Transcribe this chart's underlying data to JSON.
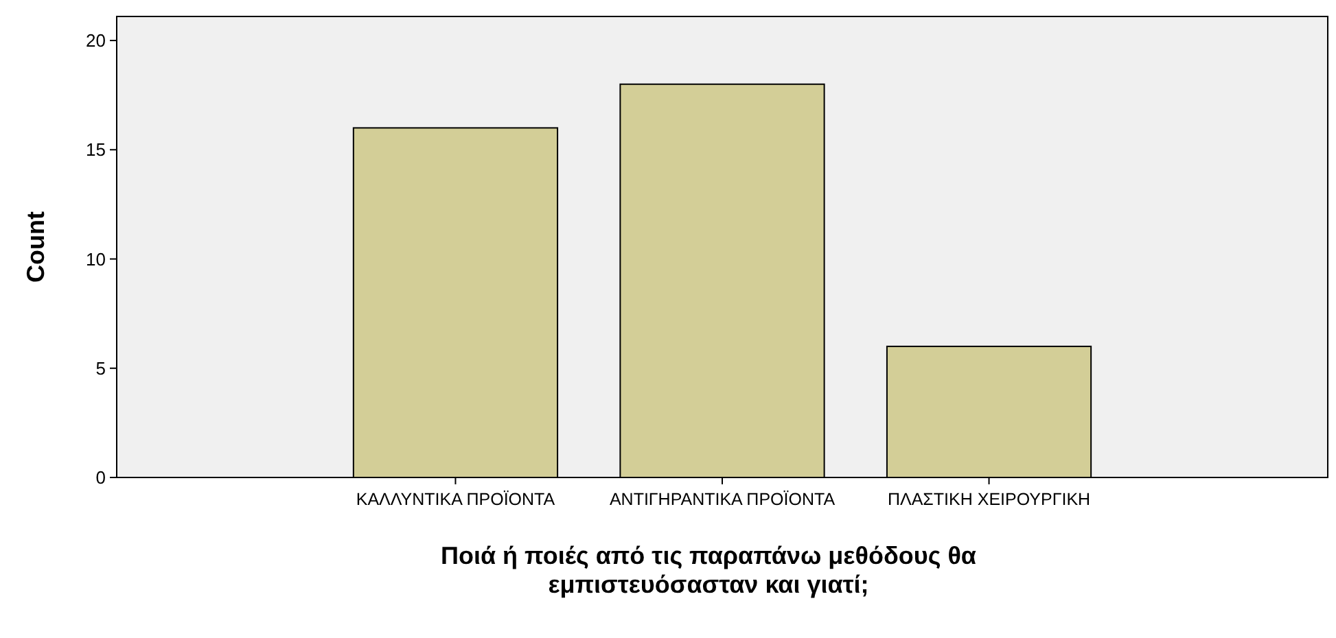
{
  "chart_data": {
    "type": "bar",
    "xlabel": "Ποιά ή ποιές από τις παραπάνω μεθόδους θα εμπιστευόσασταν και γιατί;",
    "ylabel": "Count",
    "categories": [
      "ΚΑΛΛΥΝΤΙΚΑ ΠΡΟΪΟΝΤΑ",
      "ΑΝΤΙΓΗΡΑΝΤΙΚΑ ΠΡΟΪΟΝΤΑ",
      "ΠΛΑΣΤΙΚΗ ΧΕΙΡΟΥΡΓΙΚΗ"
    ],
    "values": [
      16,
      18,
      6
    ],
    "color": "#d3ce97",
    "ylim": [
      0,
      21.1
    ],
    "yticks": [
      0,
      5,
      10,
      15,
      20
    ],
    "grid": false
  }
}
